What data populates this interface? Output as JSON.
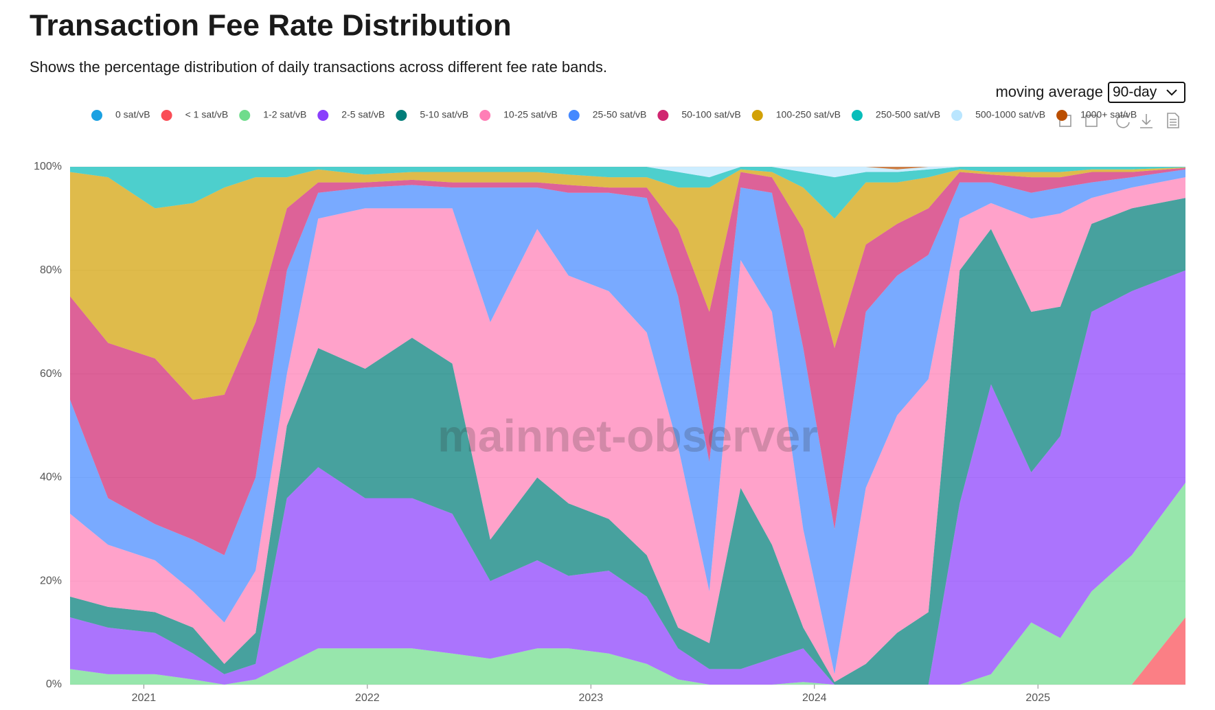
{
  "chart_data": {
    "type": "stacked_area",
    "title": "Transaction Fee Rate Distribution",
    "subtitle": "Shows the percentage distribution of daily transactions across different fee rate bands.",
    "control_label": "moving average",
    "control_value": "90-day",
    "watermark": "mainnet-observer",
    "x": [
      2020.67,
      2020.84,
      2021.05,
      2021.22,
      2021.36,
      2021.5,
      2021.64,
      2021.78,
      2021.99,
      2022.2,
      2022.38,
      2022.55,
      2022.76,
      2022.9,
      2023.08,
      2023.25,
      2023.39,
      2023.53,
      2023.67,
      2023.81,
      2023.95,
      2024.09,
      2024.23,
      2024.37,
      2024.51,
      2024.65,
      2024.79,
      2024.97,
      2025.1,
      2025.24,
      2025.42,
      2025.66
    ],
    "xlim": [
      2020.67,
      2025.66
    ],
    "xticks": [
      2021,
      2022,
      2023,
      2024,
      2025
    ],
    "ylim": [
      0,
      100
    ],
    "yticks": [
      {
        "value": 0,
        "label": "0%"
      },
      {
        "value": 20,
        "label": "20%"
      },
      {
        "value": 40,
        "label": "40%"
      },
      {
        "value": 60,
        "label": "60%"
      },
      {
        "value": 80,
        "label": "80%"
      },
      {
        "value": 100,
        "label": "100%"
      }
    ],
    "grid": true,
    "legend": "top",
    "series": [
      {
        "name": "0 sat/vB",
        "color": "#1ba1e2",
        "values": [
          0,
          0,
          0,
          0,
          0,
          0,
          0,
          0,
          0,
          0,
          0,
          0,
          0,
          0,
          0,
          0,
          0,
          0,
          0,
          0,
          0,
          0,
          0,
          0,
          0,
          0,
          0,
          0,
          0,
          0,
          0,
          0
        ]
      },
      {
        "name": "< 1 sat/vB",
        "color": "#fa4d56",
        "values": [
          0,
          0,
          0,
          0,
          0,
          0,
          0,
          0,
          0,
          0,
          0,
          0,
          0,
          0,
          0,
          0,
          0,
          0,
          0,
          0,
          0,
          0,
          0,
          0,
          0,
          0,
          0,
          0,
          0,
          0,
          0,
          13
        ]
      },
      {
        "name": "1-2 sat/vB",
        "color": "#6fdc8c",
        "values": [
          3,
          2,
          2,
          1,
          0,
          1,
          4,
          7,
          7,
          7,
          6,
          5,
          7,
          7,
          6,
          4,
          1,
          0,
          0,
          0,
          0.5,
          0,
          0,
          0,
          0,
          0,
          2,
          12,
          9,
          18,
          25,
          26
        ]
      },
      {
        "name": "2-5 sat/vB",
        "color": "#8a3ffc",
        "values": [
          10,
          9,
          8,
          5,
          2,
          3,
          32,
          35,
          29,
          29,
          27,
          15,
          17,
          14,
          16,
          13,
          6,
          3,
          3,
          5,
          6.5,
          0,
          0,
          0,
          0,
          35,
          56,
          29,
          39,
          54,
          51,
          41
        ]
      },
      {
        "name": "5-10 sat/vB",
        "color": "#007d79",
        "values": [
          4,
          4,
          4,
          5,
          2,
          6,
          14,
          23,
          25,
          31,
          29,
          8,
          16,
          14,
          10,
          8,
          4,
          5,
          35,
          22,
          4,
          0.5,
          4,
          10,
          14,
          45,
          30,
          31,
          25,
          17,
          16,
          14
        ]
      },
      {
        "name": "10-25 sat/vB",
        "color": "#ff7eb6",
        "values": [
          16,
          12,
          10,
          7,
          8,
          12,
          10,
          25,
          31,
          25,
          30,
          42,
          48,
          44,
          44,
          43,
          35,
          10,
          44,
          45,
          19,
          1.5,
          34,
          42,
          45,
          10,
          5,
          18,
          18,
          5,
          4,
          4
        ]
      },
      {
        "name": "25-50 sat/vB",
        "color": "#4589ff",
        "values": [
          22,
          9,
          7,
          10,
          13,
          18,
          20,
          5,
          4,
          4.5,
          4,
          26,
          8,
          16,
          19,
          26,
          29,
          25,
          14,
          23,
          35,
          28,
          34,
          27,
          24,
          7,
          4,
          5,
          5,
          3,
          2,
          1.5
        ]
      },
      {
        "name": "50-100 sat/vB",
        "color": "#d02670",
        "values": [
          20,
          30,
          32,
          27,
          31,
          30,
          12,
          2,
          1,
          1,
          1,
          1,
          1,
          1.5,
          1,
          2,
          13,
          29,
          3,
          3,
          23,
          35,
          13,
          10,
          9,
          2,
          1.5,
          3,
          2,
          2,
          1,
          0.3
        ]
      },
      {
        "name": "100-250 sat/vB",
        "color": "#d2a106",
        "values": [
          24,
          32,
          29,
          38,
          40,
          28,
          6,
          2.5,
          1.5,
          1.5,
          2,
          2,
          2,
          2,
          2,
          2,
          8,
          24,
          0.5,
          1,
          8,
          25,
          12,
          8,
          6,
          0.5,
          0.5,
          1,
          1,
          0.5,
          0.5,
          0.1
        ]
      },
      {
        "name": "250-500 sat/vB",
        "color": "#08bdba",
        "values": [
          1,
          2,
          8,
          7,
          4,
          2,
          2,
          0.5,
          1.5,
          1,
          1,
          1,
          1,
          1.5,
          2,
          2,
          3,
          2,
          0.5,
          1,
          3,
          8,
          2,
          2,
          1.5,
          0.5,
          1,
          1,
          1,
          0.5,
          0.5,
          0.1
        ]
      },
      {
        "name": "500-1000 sat/vB",
        "color": "#bae6ff",
        "values": [
          0,
          0,
          0,
          0,
          0,
          0,
          0,
          0,
          0,
          0,
          0,
          0,
          0,
          0,
          0,
          0,
          1,
          2,
          0,
          0,
          1,
          2,
          1,
          0.5,
          0.5,
          0,
          0,
          0,
          0,
          0,
          0,
          0
        ]
      },
      {
        "name": "1000+ sat/vB",
        "color": "#ba4e00",
        "values": [
          0,
          0,
          0,
          0,
          0,
          0,
          0,
          0,
          0,
          0,
          0,
          0,
          0,
          0,
          0,
          0,
          0,
          0,
          0,
          0,
          0,
          0,
          0,
          0.5,
          0,
          0,
          0,
          0,
          0,
          0,
          0,
          0
        ]
      }
    ]
  }
}
